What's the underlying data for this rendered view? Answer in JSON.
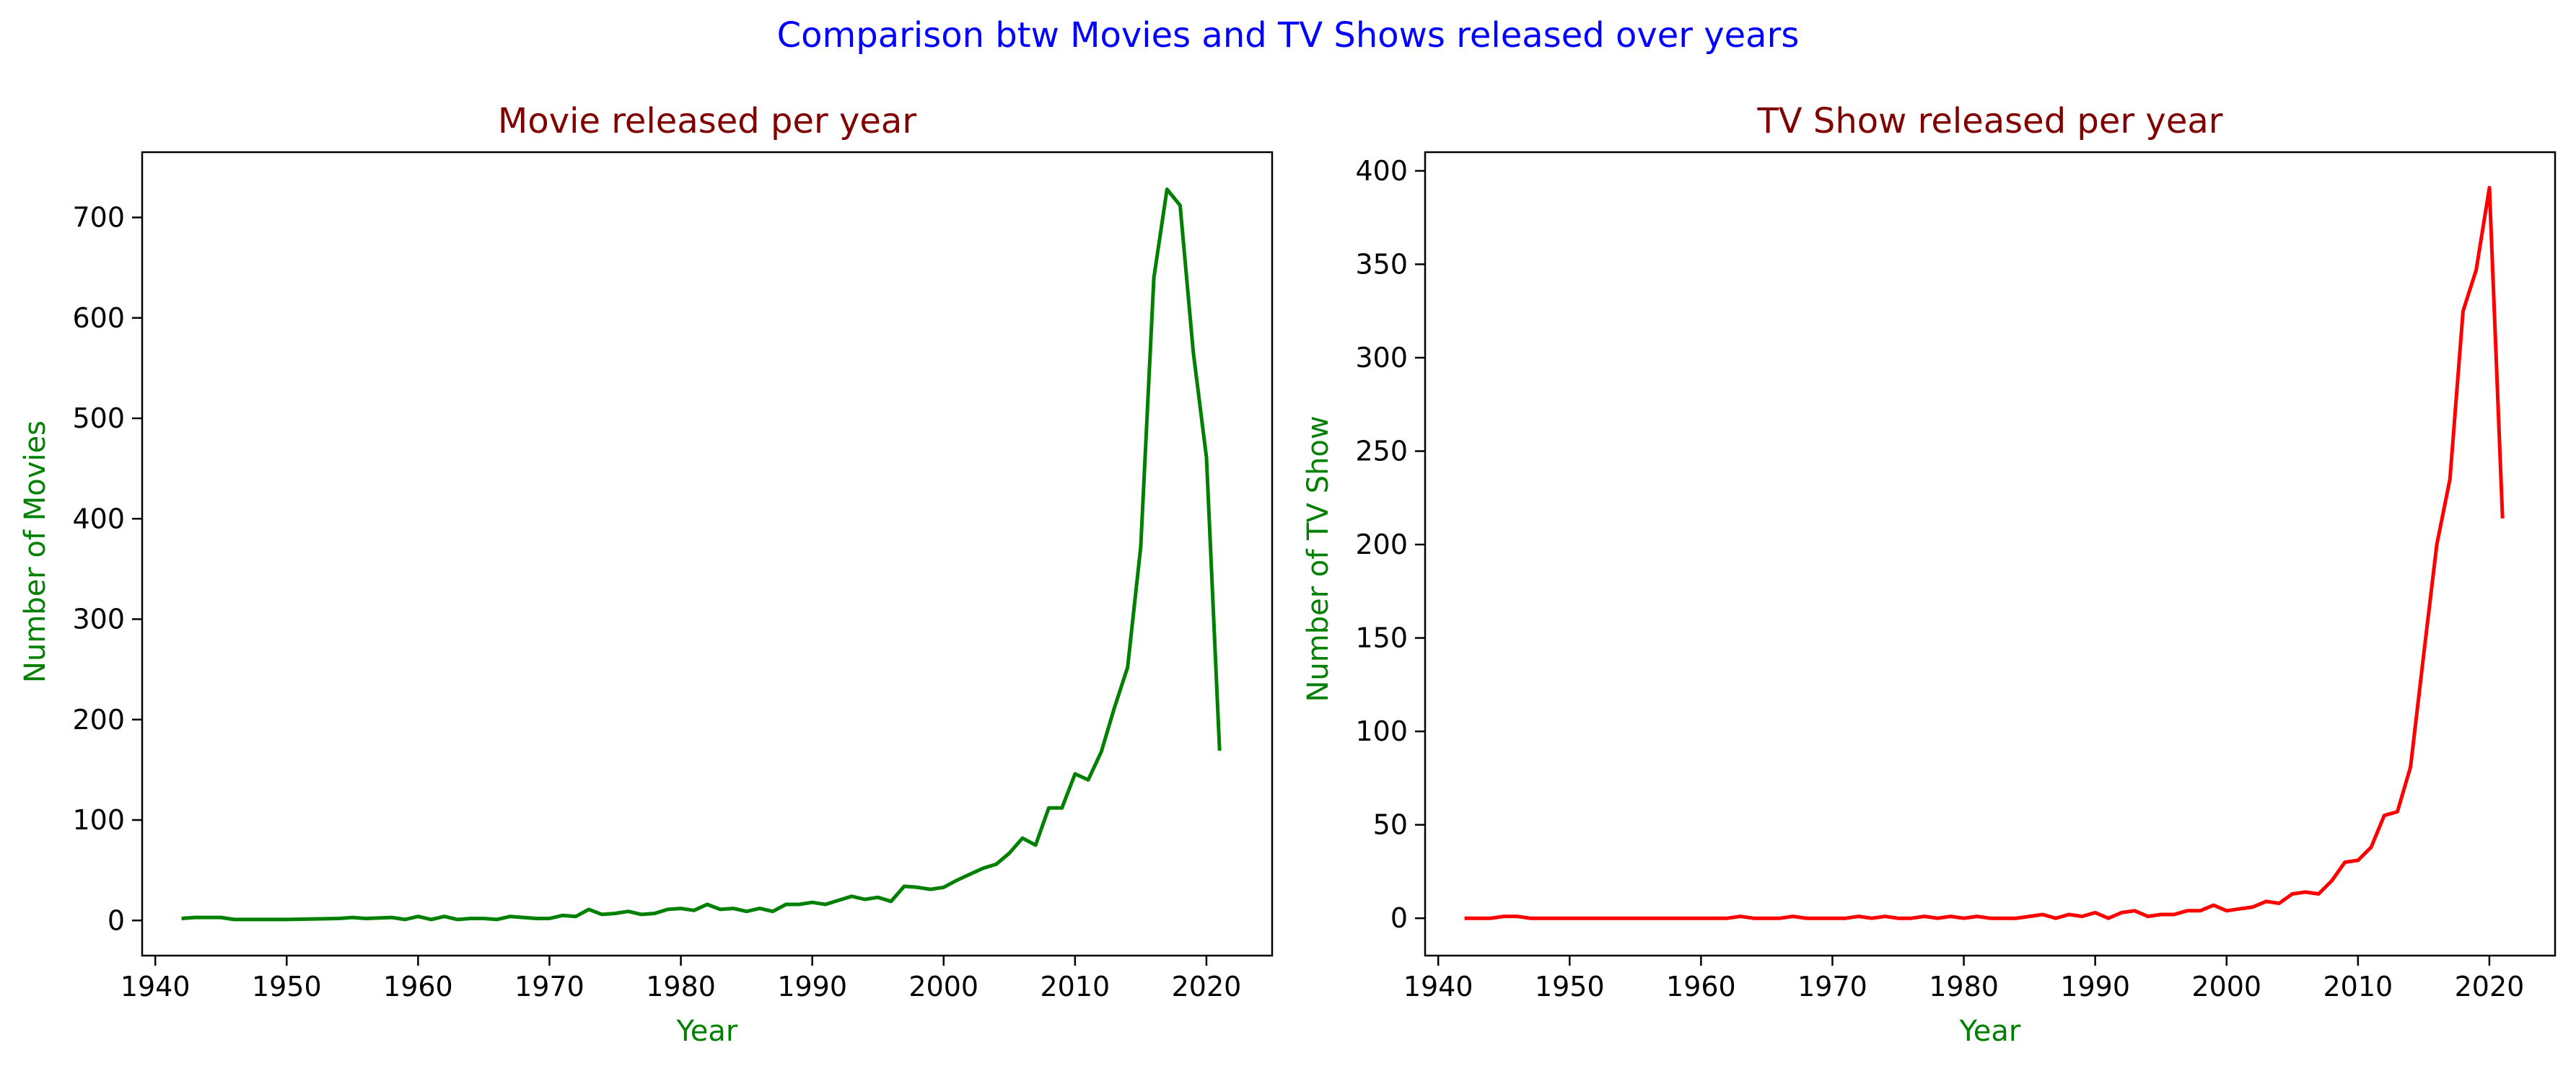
{
  "suptitle": "Comparison btw Movies and TV Shows released over years",
  "chart_data": [
    {
      "type": "line",
      "title": "Movie released per year",
      "xlabel": "Year",
      "ylabel": "Number of Movies",
      "color": "#008000",
      "xlim": [
        1939,
        2025
      ],
      "ylim": [
        -35,
        765
      ],
      "xticks": [
        1940,
        1950,
        1960,
        1970,
        1980,
        1990,
        2000,
        2010,
        2020
      ],
      "yticks": [
        0,
        100,
        200,
        300,
        400,
        500,
        600,
        700
      ],
      "grid": false,
      "series": [
        {
          "x": [
            1942,
            1943,
            1944,
            1945,
            1946,
            1947,
            1950,
            1954,
            1955,
            1956,
            1958,
            1959,
            1960,
            1961,
            1962,
            1963,
            1964,
            1965,
            1966,
            1967,
            1968,
            1969,
            1970,
            1971,
            1972,
            1973,
            1974,
            1975,
            1976,
            1977,
            1978,
            1979,
            1980,
            1981,
            1982,
            1983,
            1984,
            1985,
            1986,
            1987,
            1988,
            1989,
            1990,
            1991,
            1992,
            1993,
            1994,
            1995,
            1996,
            1997,
            1998,
            1999,
            2000,
            2001,
            2002,
            2003,
            2004,
            2005,
            2006,
            2007,
            2008,
            2009,
            2010,
            2011,
            2012,
            2013,
            2014,
            2015,
            2016,
            2017,
            2018,
            2019,
            2020,
            2021
          ],
          "y": [
            2,
            3,
            3,
            3,
            1,
            1,
            1,
            2,
            3,
            2,
            3,
            1,
            4,
            1,
            4,
            1,
            2,
            2,
            1,
            4,
            3,
            2,
            2,
            5,
            4,
            11,
            6,
            7,
            9,
            6,
            7,
            11,
            12,
            10,
            16,
            11,
            12,
            9,
            12,
            9,
            16,
            16,
            18,
            16,
            20,
            24,
            21,
            23,
            19,
            34,
            33,
            31,
            33,
            40,
            46,
            52,
            56,
            67,
            82,
            75,
            112,
            112,
            146,
            140,
            168,
            212,
            252,
            372,
            640,
            728,
            712,
            566,
            461,
            169
          ]
        }
      ]
    },
    {
      "type": "line",
      "title": "TV Show released per year",
      "xlabel": "Year",
      "ylabel": "Number of TV Show",
      "color": "#ff0000",
      "xlim": [
        1939,
        2025
      ],
      "ylim": [
        -20,
        410
      ],
      "xticks": [
        1940,
        1950,
        1960,
        1970,
        1980,
        1990,
        2000,
        2010,
        2020
      ],
      "yticks": [
        0,
        50,
        100,
        150,
        200,
        250,
        300,
        350,
        400
      ],
      "grid": false,
      "series": [
        {
          "x": [
            1942,
            1943,
            1944,
            1945,
            1946,
            1947,
            1950,
            1955,
            1960,
            1962,
            1963,
            1964,
            1965,
            1966,
            1967,
            1968,
            1969,
            1970,
            1971,
            1972,
            1973,
            1974,
            1975,
            1976,
            1977,
            1978,
            1979,
            1980,
            1981,
            1982,
            1983,
            1984,
            1985,
            1986,
            1987,
            1988,
            1989,
            1990,
            1991,
            1992,
            1993,
            1994,
            1995,
            1996,
            1997,
            1998,
            1999,
            2000,
            2001,
            2002,
            2003,
            2004,
            2005,
            2006,
            2007,
            2008,
            2009,
            2010,
            2011,
            2012,
            2013,
            2014,
            2015,
            2016,
            2017,
            2018,
            2019,
            2020,
            2021
          ],
          "y": [
            0,
            0,
            0,
            1,
            1,
            0,
            0,
            0,
            0,
            0,
            1,
            0,
            0,
            0,
            1,
            0,
            0,
            0,
            0,
            1,
            0,
            1,
            0,
            0,
            1,
            0,
            1,
            0,
            1,
            0,
            0,
            0,
            1,
            2,
            0,
            2,
            1,
            3,
            0,
            3,
            4,
            1,
            2,
            2,
            4,
            4,
            7,
            4,
            5,
            6,
            9,
            8,
            13,
            14,
            13,
            20,
            30,
            31,
            38,
            55,
            57,
            81,
            141,
            200,
            235,
            325,
            347,
            391,
            214
          ]
        }
      ]
    }
  ]
}
